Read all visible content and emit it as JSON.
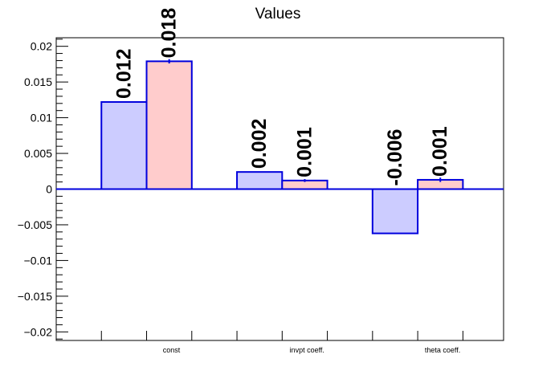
{
  "chart_data": {
    "type": "bar",
    "title": "Values",
    "categories": [
      "const",
      "invpt coeff.",
      "theta coeff."
    ],
    "series": [
      {
        "values": [
          0.0122,
          0.0024,
          -0.0062
        ],
        "labels": [
          "0.012",
          "0.002",
          "-0.006"
        ],
        "fill": "#ccccff",
        "stroke": "#0000dd"
      },
      {
        "values": [
          0.0179,
          0.0012,
          0.0013
        ],
        "errors": [
          0.0003,
          0.0002,
          0.0003
        ],
        "labels": [
          "0.018",
          "0.001",
          "0.001"
        ],
        "fill": "#ffcccc",
        "stroke": "#0000dd"
      }
    ],
    "ylim": [
      -0.0212,
      0.0212
    ],
    "yticks": [
      -0.02,
      -0.015,
      -0.01,
      -0.005,
      0,
      0.005,
      0.01,
      0.015,
      0.02
    ],
    "ytick_labels": [
      "−0.02",
      "−0.015",
      "−0.01",
      "−0.005",
      "0",
      "0.005",
      "0.01",
      "0.015",
      "0.02"
    ],
    "grid": false,
    "legend": "none",
    "axis_color": "#000000",
    "zero_line_color": "#0000dd"
  }
}
